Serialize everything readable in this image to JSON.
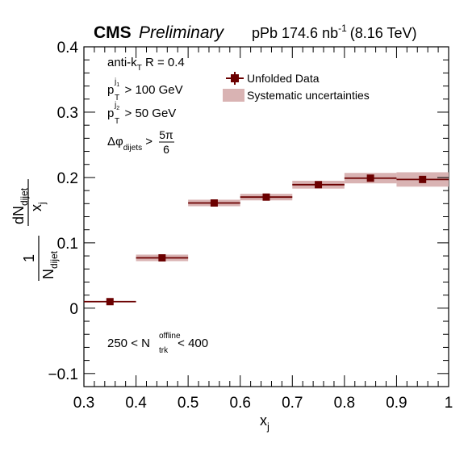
{
  "header": {
    "experiment": "CMS",
    "status": "Preliminary",
    "lumi": "pPb 174.6 nb",
    "lumi_exp": "-1",
    "energy": "(8.16 TeV)"
  },
  "annotations": {
    "algo_a": "anti-k",
    "algo_sub": "T",
    "algo_b": " R = 0.4",
    "pt1_p": "p",
    "pt1_sup": "j",
    "pt1_supsub": "1",
    "pt1_sub": "T",
    "pt1_rest": " > 100 GeV",
    "pt2_p": "p",
    "pt2_sup": "j",
    "pt2_supsub": "2",
    "pt2_sub": "T",
    "pt2_rest": " > 50 GeV",
    "dphi_a": "Δφ",
    "dphi_sub": "dijets",
    "dphi_gt": " >",
    "dphi_num": "5π",
    "dphi_den": "6",
    "mult_a": "250 < N",
    "mult_sup": "offline",
    "mult_sub": "trk",
    "mult_b": " < 400"
  },
  "legend": {
    "data_label": "Unfolded Data",
    "syst_label": "Systematic uncertainties"
  },
  "colors": {
    "marker": "#6b0000",
    "band": "#d9b3b3"
  },
  "chart_data": {
    "type": "scatter",
    "xlabel": "x",
    "xlabel_sub": "j",
    "ylabel_frac_num": "1",
    "ylabel_frac_den": "N",
    "ylabel_frac_den_sub": "dijet",
    "ylabel_deriv_num": "dN",
    "ylabel_deriv_num_sub": "dijet",
    "ylabel_deriv_den": "x",
    "ylabel_deriv_den_sub": "j",
    "xlim": [
      0.3,
      1.0
    ],
    "ylim": [
      -0.12,
      0.4
    ],
    "x_ticks": [
      "0.3",
      "0.4",
      "0.5",
      "0.6",
      "0.7",
      "0.8",
      "0.9",
      "1"
    ],
    "y_ticks": [
      "−0.1",
      "0",
      "0.1",
      "0.2",
      "0.3",
      "0.4"
    ],
    "series": [
      {
        "name": "Unfolded Data",
        "bins": [
          {
            "xlo": 0.3,
            "xhi": 0.4,
            "x": 0.35,
            "y": 0.01,
            "syst": 0.0
          },
          {
            "xlo": 0.4,
            "xhi": 0.5,
            "x": 0.45,
            "y": 0.077,
            "syst": 0.005
          },
          {
            "xlo": 0.5,
            "xhi": 0.6,
            "x": 0.55,
            "y": 0.161,
            "syst": 0.005
          },
          {
            "xlo": 0.6,
            "xhi": 0.7,
            "x": 0.65,
            "y": 0.17,
            "syst": 0.005
          },
          {
            "xlo": 0.7,
            "xhi": 0.8,
            "x": 0.75,
            "y": 0.189,
            "syst": 0.006
          },
          {
            "xlo": 0.8,
            "xhi": 0.9,
            "x": 0.85,
            "y": 0.199,
            "syst": 0.008
          },
          {
            "xlo": 0.9,
            "xhi": 1.0,
            "x": 0.95,
            "y": 0.197,
            "syst": 0.011
          }
        ]
      }
    ]
  }
}
